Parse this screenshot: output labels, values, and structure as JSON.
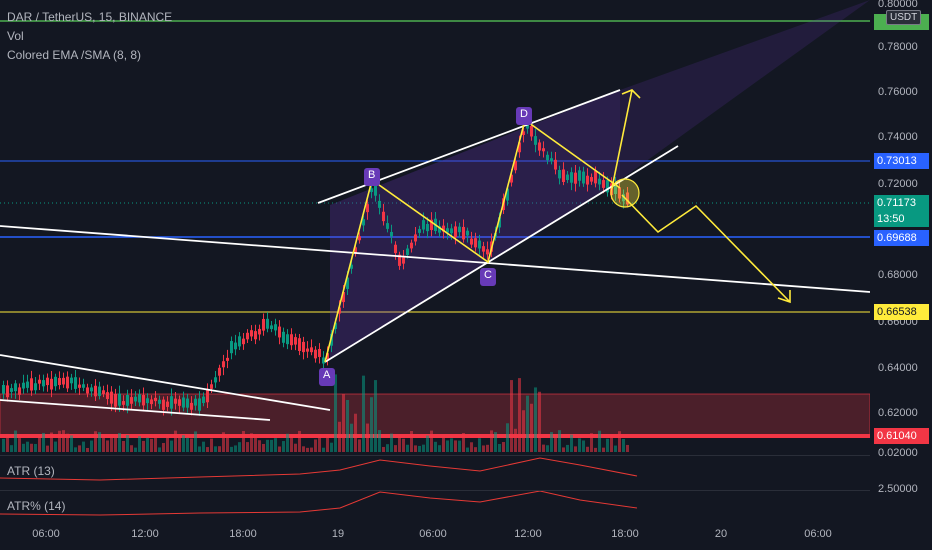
{
  "header": {
    "symbol": "DAR / TetherUS, 15, BINANCE",
    "vol_label": "Vol",
    "ema_label": "Colored EMA /SMA (8, 8)"
  },
  "currency_button": "USDT",
  "price_axis": {
    "ticks": [
      "0.80000",
      "0.78000",
      "0.76000",
      "0.74000",
      "0.72000",
      "0.68000",
      "0.66000",
      "0.64000",
      "0.62000",
      "0.02000",
      "2.50000"
    ],
    "labels": [
      {
        "text": "0.73013",
        "color": "#2962ff",
        "text_color": "#ffffff"
      },
      {
        "text": "0.71173",
        "color": "#089981",
        "text_color": "#ffffff"
      },
      {
        "text": "13:50",
        "color": "#089981",
        "text_color": "#ffffff"
      },
      {
        "text": "0.69688",
        "color": "#2962ff",
        "text_color": "#ffffff"
      },
      {
        "text": "0.66538",
        "color": "#ffeb3b",
        "text_color": "#131722"
      },
      {
        "text": "0.61040",
        "color": "#f23645",
        "text_color": "#ffffff"
      }
    ]
  },
  "time_axis": [
    "06:00",
    "12:00",
    "18:00",
    "19",
    "06:00",
    "12:00",
    "18:00",
    "20",
    "06:00"
  ],
  "pattern_points": [
    "A",
    "B",
    "C",
    "D"
  ],
  "indicators": {
    "atr_label": "ATR (13)",
    "atr_pct_label": "ATR% (14)"
  },
  "colors": {
    "background": "#131722",
    "up": "#089981",
    "down": "#f23645",
    "blue_line": "#2962ff",
    "yellow_line": "#ffeb3b",
    "green_line": "#4caf50",
    "pattern_label": "#673ab7"
  }
}
